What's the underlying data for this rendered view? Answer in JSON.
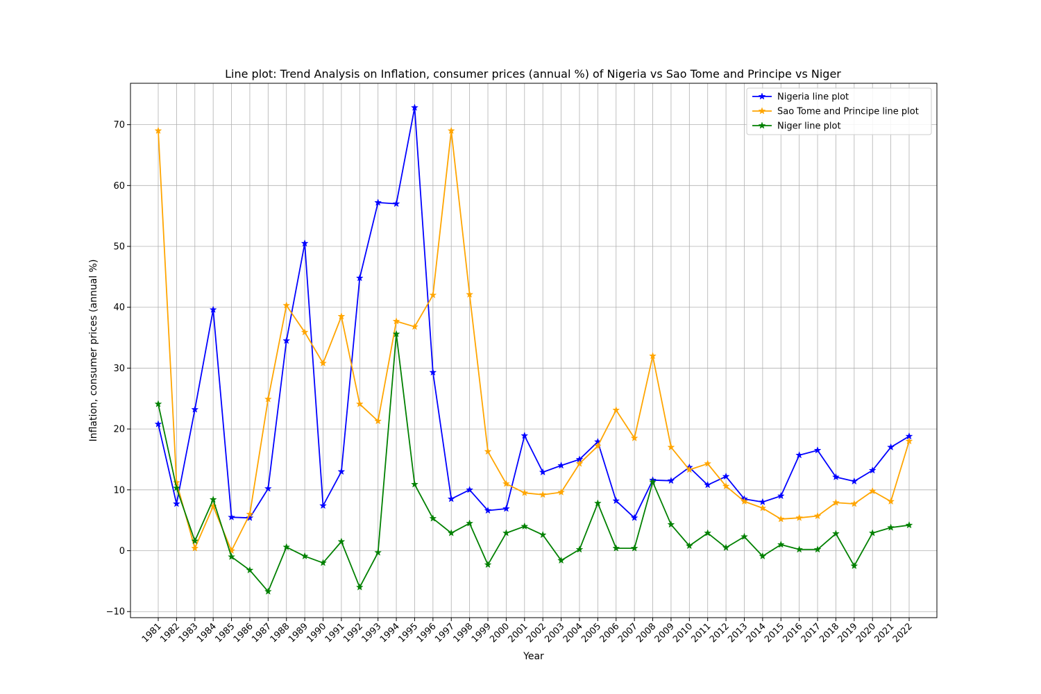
{
  "chart_data": {
    "type": "line",
    "title": "Line plot: Trend Analysis on Inflation, consumer prices (annual %) of Nigeria vs Sao Tome and Principe vs Niger",
    "xlabel": "Year",
    "ylabel": "Inflation, consumer prices (annual %)",
    "ylim": [
      -11,
      76.8
    ],
    "yticks": [
      -10,
      0,
      10,
      20,
      30,
      40,
      50,
      60,
      70
    ],
    "ytick_labels": [
      "−10",
      "0",
      "10",
      "20",
      "30",
      "40",
      "50",
      "60",
      "70"
    ],
    "grid": true,
    "legend_position": "upper right",
    "marker": "star",
    "x": [
      "1981",
      "1982",
      "1983",
      "1984",
      "1985",
      "1986",
      "1987",
      "1988",
      "1989",
      "1990",
      "1991",
      "1992",
      "1993",
      "1994",
      "1995",
      "1996",
      "1997",
      "1998",
      "1999",
      "2000",
      "2001",
      "2002",
      "2003",
      "2004",
      "2005",
      "2006",
      "2007",
      "2008",
      "2009",
      "2010",
      "2011",
      "2012",
      "2013",
      "2014",
      "2015",
      "2016",
      "2017",
      "2018",
      "2019",
      "2020",
      "2021",
      "2022"
    ],
    "series": [
      {
        "name": "Nigeria line plot",
        "color": "#0000ff",
        "values": [
          20.8,
          7.7,
          23.2,
          39.6,
          5.5,
          5.4,
          10.2,
          34.5,
          50.5,
          7.4,
          13.0,
          44.8,
          57.2,
          57.0,
          72.8,
          29.3,
          8.5,
          10.0,
          6.6,
          6.9,
          18.9,
          12.9,
          14.0,
          15.0,
          17.9,
          8.2,
          5.4,
          11.6,
          11.5,
          13.7,
          10.8,
          12.2,
          8.5,
          8.0,
          9.0,
          15.7,
          16.5,
          12.1,
          11.4,
          13.2,
          17.0,
          18.8
        ]
      },
      {
        "name": "Sao Tome and Principe line plot",
        "color": "#ffa500",
        "values": [
          69.0,
          11.2,
          0.4,
          7.3,
          0.0,
          6.0,
          24.9,
          40.3,
          35.9,
          30.8,
          38.5,
          24.1,
          21.3,
          37.7,
          36.8,
          42.0,
          69.0,
          42.1,
          16.3,
          11.0,
          9.5,
          9.2,
          9.6,
          14.3,
          17.2,
          23.1,
          18.5,
          32.0,
          17.0,
          13.3,
          14.3,
          10.6,
          8.1,
          7.0,
          5.2,
          5.4,
          5.7,
          7.9,
          7.7,
          9.8,
          8.1,
          18.0
        ]
      },
      {
        "name": "Niger line plot",
        "color": "#008000",
        "values": [
          24.1,
          10.3,
          1.6,
          8.4,
          -1.0,
          -3.2,
          -6.7,
          0.6,
          -0.9,
          -2.0,
          1.5,
          -6.0,
          -0.3,
          35.6,
          10.9,
          5.3,
          2.9,
          4.5,
          -2.3,
          2.9,
          4.0,
          2.6,
          -1.6,
          0.2,
          7.8,
          0.4,
          0.4,
          11.3,
          4.3,
          0.8,
          2.9,
          0.5,
          2.3,
          -0.9,
          1.0,
          0.2,
          0.2,
          2.8,
          -2.5,
          2.9,
          3.8,
          4.2
        ]
      }
    ]
  }
}
